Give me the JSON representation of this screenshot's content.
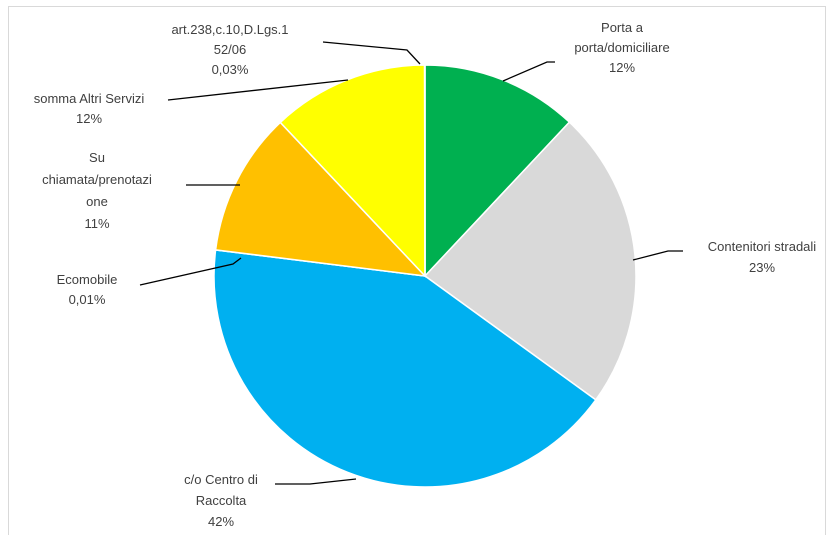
{
  "chart_data": {
    "type": "pie",
    "title": "",
    "start_angle_deg": 0,
    "direction": "clockwise",
    "slices": [
      {
        "label": "Porta a porta/domiciliare",
        "pct_label": "12%",
        "value": 12,
        "color": "#00b050"
      },
      {
        "label": "Contenitori stradali",
        "pct_label": "23%",
        "value": 23,
        "color": "#d9d9d9"
      },
      {
        "label": "c/o Centro di Raccolta",
        "pct_label": "42%",
        "value": 42,
        "color": "#00b0f0"
      },
      {
        "label": "Ecomobile",
        "pct_label": "0,01%",
        "value": 0.01,
        "color": "#0070c0"
      },
      {
        "label": "Su chiamata/prenotazione",
        "pct_label": "11%",
        "value": 11,
        "color": "#ffc000"
      },
      {
        "label": "somma Altri Servizi",
        "pct_label": "12%",
        "value": 12,
        "color": "#ffff00"
      },
      {
        "label": "art.238,c.10,D.Lgs.152/06",
        "pct_label": "0,03%",
        "value": 0.03,
        "color": "#7030a0"
      }
    ],
    "data_labels": [
      {
        "lines": [
          "Porta a",
          "porta/domiciliare",
          "12%"
        ]
      },
      {
        "lines": [
          "Contenitori stradali",
          "23%"
        ]
      },
      {
        "lines": [
          "c/o Centro di",
          "Raccolta",
          "42%"
        ]
      },
      {
        "lines": [
          "Ecomobile",
          "0,01%"
        ]
      },
      {
        "lines": [
          "Su",
          "chiamata/prenotazi",
          "one",
          "11%"
        ]
      },
      {
        "lines": [
          "somma Altri Servizi",
          "12%"
        ]
      },
      {
        "lines": [
          "art.238,c.10,D.Lgs.1",
          "52/06",
          "0,03%"
        ]
      }
    ]
  }
}
